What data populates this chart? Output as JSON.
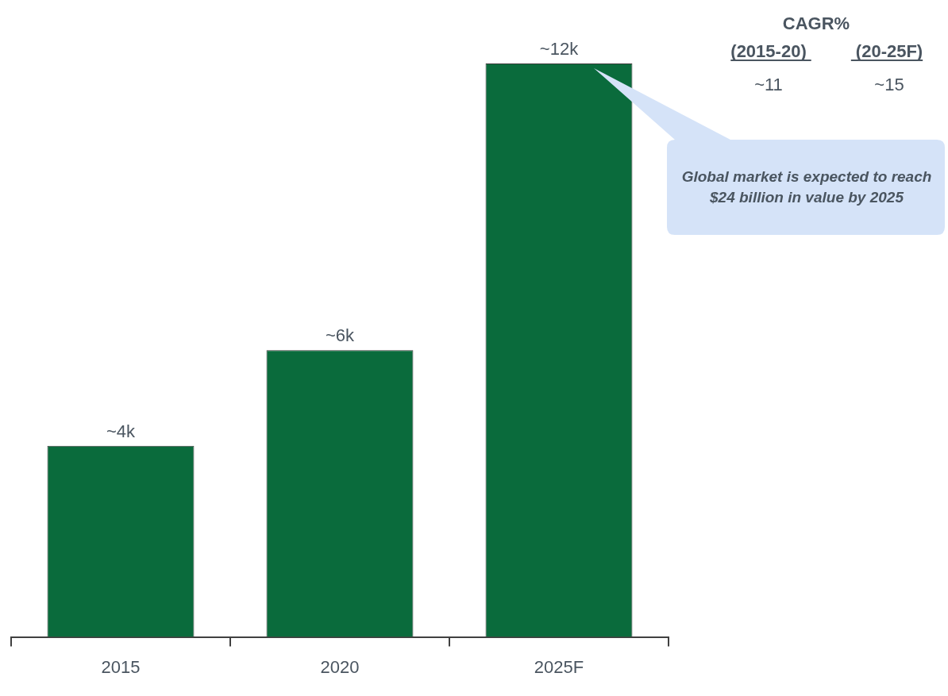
{
  "chart_data": {
    "type": "bar",
    "categories": [
      "2015",
      "2020",
      "2025F"
    ],
    "values": [
      4000,
      6000,
      12000
    ],
    "value_labels": [
      "~4k",
      "~6k",
      "~12k"
    ],
    "color": "#0a6b3c",
    "annotations": [
      "CAGR%",
      "(2015-20)",
      "(20-25F)",
      "~11",
      "~15",
      "Global market is expected to reach $24 billion in value by 2025"
    ],
    "grid": false,
    "legend": false
  }
}
